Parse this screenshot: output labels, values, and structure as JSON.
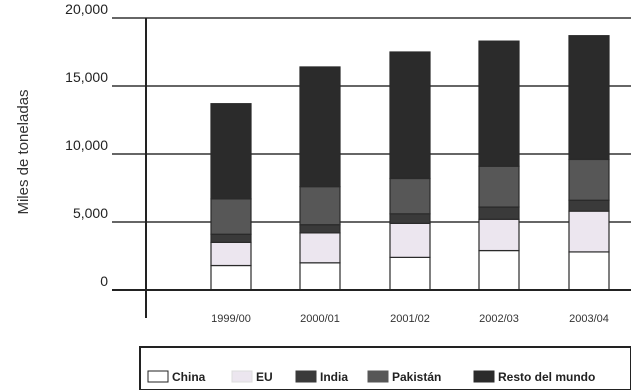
{
  "chart_data": {
    "type": "bar",
    "stacked": true,
    "categories": [
      "1999/00",
      "2000/01",
      "2001/02",
      "2002/03",
      "2003/04"
    ],
    "series": [
      {
        "name": "China",
        "values": [
          1800,
          2000,
          2400,
          2900,
          2800
        ],
        "color": "#ffffff"
      },
      {
        "name": "EU",
        "values": [
          1700,
          2200,
          2500,
          2300,
          3000
        ],
        "color": "#ece6ef"
      },
      {
        "name": "India",
        "values": [
          600,
          600,
          700,
          900,
          800
        ],
        "color": "#3a3a3a"
      },
      {
        "name": "Pakistán",
        "values": [
          2600,
          2800,
          2600,
          3000,
          3000
        ],
        "color": "#575757"
      },
      {
        "name": "Resto del mundo",
        "values": [
          7000,
          8800,
          9300,
          9200,
          9100
        ],
        "color": "#2b2b2b"
      }
    ],
    "ylabel": "Miles de toneladas",
    "ylim": [
      0,
      20000
    ],
    "yticks": [
      "20,000",
      "15,000",
      "10,000",
      "5,000",
      "0"
    ],
    "ytick_values": [
      20000,
      15000,
      10000,
      5000,
      0
    ],
    "grid": true,
    "legend_position": "bottom"
  }
}
